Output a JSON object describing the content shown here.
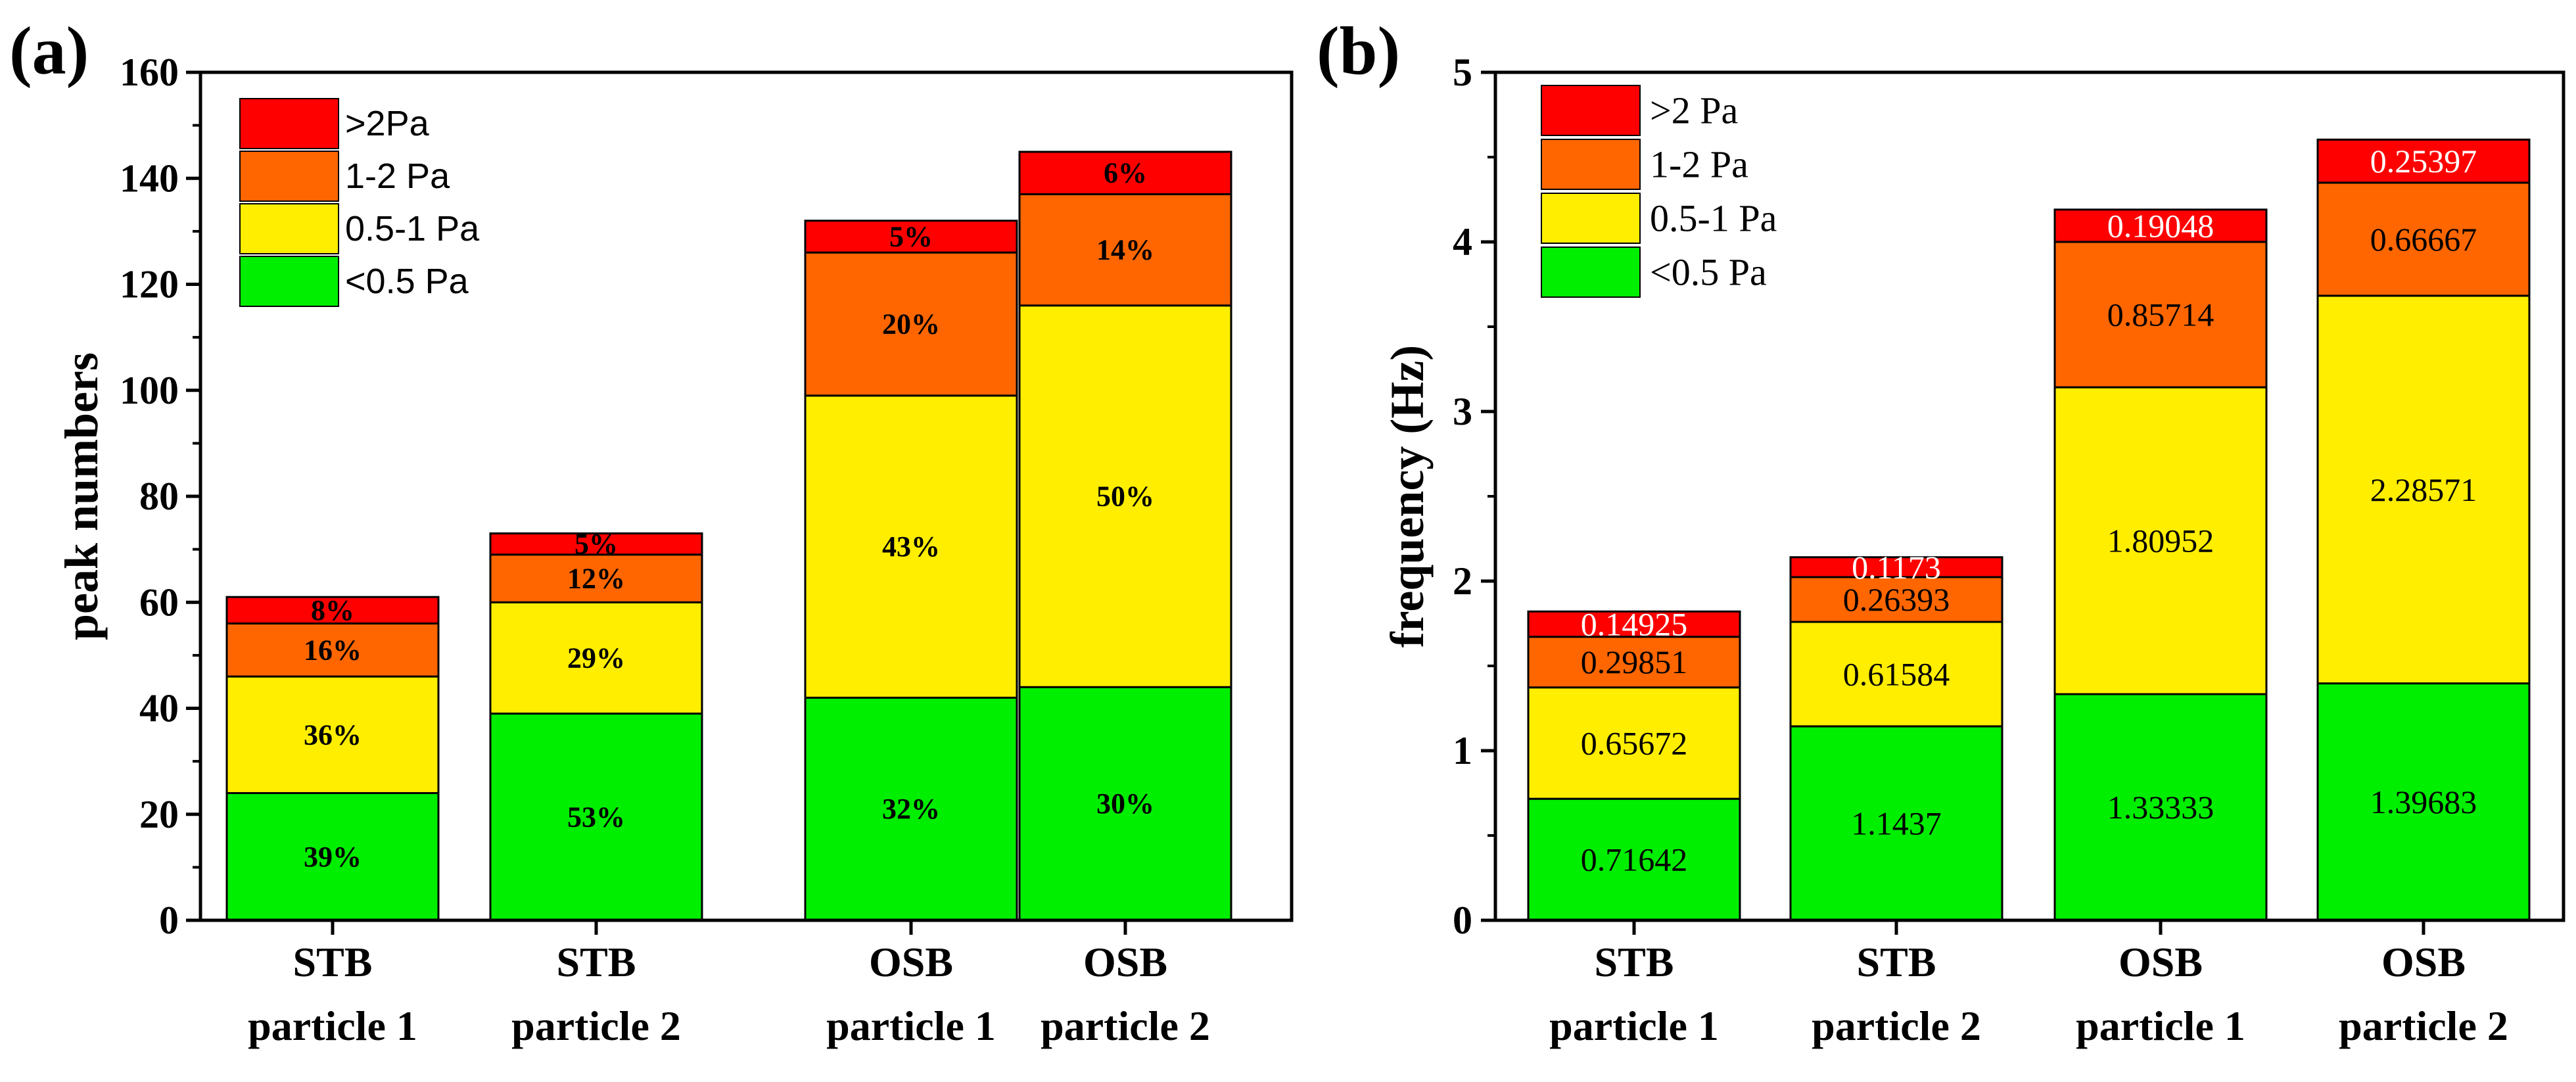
{
  "colors": {
    "lt05": "#00ee00",
    "p05_1": "#ffee00",
    "p1_2": "#ff6600",
    "gt2": "#ff0000"
  },
  "chart_data": [
    {
      "panel": "(a)",
      "type": "bar",
      "stacked": true,
      "title": "",
      "xlabel": "",
      "ylabel": "peak numbers",
      "ylim": [
        0,
        160
      ],
      "yticks": [
        0,
        20,
        40,
        60,
        80,
        100,
        120,
        140,
        160
      ],
      "categories": [
        [
          "STB",
          "particle 1"
        ],
        [
          "STB",
          "particle 2"
        ],
        [
          "OSB",
          "particle 1"
        ],
        [
          "OSB",
          "particle 2"
        ]
      ],
      "legend": {
        "position": "top-left",
        "entries": [
          ">2Pa",
          "1-2 Pa",
          "0.5-1 Pa",
          "<0.5 Pa"
        ]
      },
      "series": [
        {
          "name": "<0.5 Pa",
          "color_key": "lt05",
          "values": [
            24,
            39,
            42,
            44
          ],
          "labels": [
            "39%",
            "53%",
            "32%",
            "30%"
          ]
        },
        {
          "name": "0.5-1 Pa",
          "color_key": "p05_1",
          "values": [
            22,
            21,
            57,
            72
          ],
          "labels": [
            "36%",
            "29%",
            "43%",
            "50%"
          ]
        },
        {
          "name": "1-2 Pa",
          "color_key": "p1_2",
          "values": [
            10,
            9,
            27,
            21
          ],
          "labels": [
            "16%",
            "12%",
            "20%",
            "14%"
          ]
        },
        {
          "name": ">2Pa",
          "color_key": "gt2",
          "values": [
            5,
            4,
            6,
            8
          ],
          "labels": [
            "8%",
            "5%",
            "5%",
            "6%"
          ]
        }
      ]
    },
    {
      "panel": "(b)",
      "type": "bar",
      "stacked": true,
      "title": "",
      "xlabel": "",
      "ylabel": "frequency (Hz)",
      "ylim": [
        0,
        5
      ],
      "yticks": [
        0,
        1,
        2,
        3,
        4,
        5
      ],
      "categories": [
        [
          "STB",
          "particle 1"
        ],
        [
          "STB",
          "particle 2"
        ],
        [
          "OSB",
          "particle 1"
        ],
        [
          "OSB",
          "particle 2"
        ]
      ],
      "legend": {
        "position": "top-left",
        "entries": [
          ">2 Pa",
          "1-2 Pa",
          "0.5-1 Pa",
          "<0.5 Pa"
        ]
      },
      "series": [
        {
          "name": "<0.5 Pa",
          "color_key": "lt05",
          "values": [
            0.71642,
            1.1437,
            1.33333,
            1.39683
          ],
          "labels": [
            "0.71642",
            "1.1437",
            "1.33333",
            "1.39683"
          ]
        },
        {
          "name": "0.5-1 Pa",
          "color_key": "p05_1",
          "values": [
            0.65672,
            0.61584,
            1.80952,
            2.28571
          ],
          "labels": [
            "0.65672",
            "0.61584",
            "1.80952",
            "2.28571"
          ]
        },
        {
          "name": "1-2 Pa",
          "color_key": "p1_2",
          "values": [
            0.29851,
            0.26393,
            0.85714,
            0.66667
          ],
          "labels": [
            "0.29851",
            "0.26393",
            "0.85714",
            "0.66667"
          ]
        },
        {
          "name": ">2 Pa",
          "color_key": "gt2",
          "values": [
            0.14925,
            0.1173,
            0.19048,
            0.25397
          ],
          "labels": [
            "0.14925",
            "0.1173",
            "0.19048",
            "0.25397"
          ]
        }
      ]
    }
  ]
}
